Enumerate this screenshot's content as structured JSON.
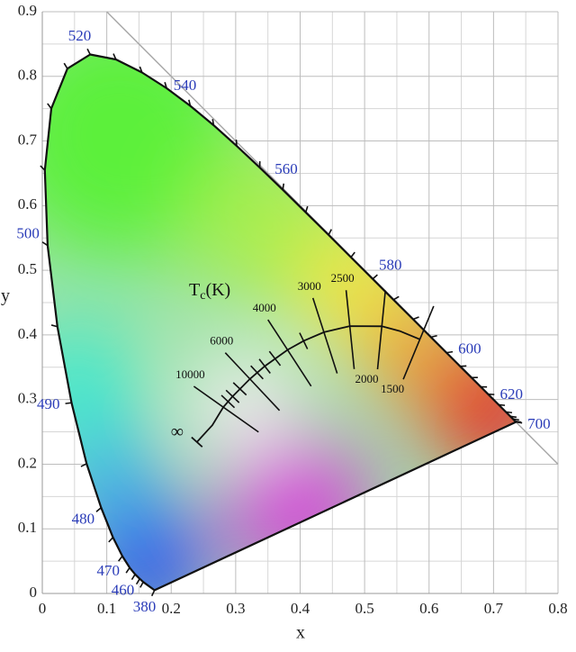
{
  "chart_data": {
    "type": "chromaticity",
    "x_label": "x",
    "y_label": "y",
    "xlim": [
      0,
      0.8
    ],
    "ylim": [
      0,
      0.9
    ],
    "xticks": [
      0.0,
      0.1,
      0.2,
      0.3,
      0.4,
      0.5,
      0.6,
      0.7,
      0.8
    ],
    "yticks": [
      0.0,
      0.1,
      0.2,
      0.3,
      0.4,
      0.5,
      0.6,
      0.7,
      0.8,
      0.9
    ],
    "xminor": [
      0.05,
      0.15,
      0.25,
      0.35,
      0.45,
      0.55,
      0.65,
      0.75
    ],
    "yminor": [
      0.05,
      0.15,
      0.25,
      0.35,
      0.45,
      0.55,
      0.65,
      0.75,
      0.85
    ],
    "grid": true,
    "spectral_locus": {
      "wavelengths": [
        380,
        450,
        455,
        460,
        465,
        470,
        475,
        480,
        485,
        490,
        495,
        500,
        505,
        510,
        515,
        520,
        525,
        530,
        535,
        540,
        545,
        550,
        555,
        560,
        565,
        570,
        575,
        580,
        585,
        590,
        595,
        600,
        605,
        610,
        615,
        620,
        630,
        640,
        650,
        660,
        680,
        700
      ],
      "x": [
        0.1741,
        0.1566,
        0.151,
        0.144,
        0.1355,
        0.1241,
        0.1096,
        0.0913,
        0.0687,
        0.0454,
        0.0235,
        0.0082,
        0.0039,
        0.0139,
        0.0389,
        0.0743,
        0.1142,
        0.1547,
        0.1929,
        0.2296,
        0.2658,
        0.3016,
        0.3373,
        0.3731,
        0.4087,
        0.4441,
        0.4788,
        0.5125,
        0.5448,
        0.5752,
        0.6029,
        0.627,
        0.6482,
        0.6658,
        0.6801,
        0.6915,
        0.7079,
        0.719,
        0.726,
        0.73,
        0.7334,
        0.7347
      ],
      "y": [
        0.005,
        0.0177,
        0.0227,
        0.0297,
        0.0399,
        0.0578,
        0.0868,
        0.1327,
        0.2007,
        0.295,
        0.4127,
        0.5384,
        0.6548,
        0.7502,
        0.812,
        0.8338,
        0.8262,
        0.8059,
        0.7816,
        0.7543,
        0.7243,
        0.6923,
        0.6589,
        0.6245,
        0.5896,
        0.5547,
        0.5202,
        0.4866,
        0.4544,
        0.4242,
        0.3965,
        0.3725,
        0.3514,
        0.334,
        0.3197,
        0.3083,
        0.292,
        0.2809,
        0.274,
        0.27,
        0.2666,
        0.2653
      ]
    },
    "wavelength_labels": [
      380,
      460,
      470,
      480,
      490,
      500,
      520,
      540,
      560,
      580,
      600,
      620,
      700
    ],
    "planck_label": {
      "symbol": "T",
      "subscript": "c",
      "unit": "(K)"
    },
    "infinity_label": "∞",
    "planckian_locus": {
      "x": [
        0.2399,
        0.2565,
        0.2637,
        0.2807,
        0.2952,
        0.3221,
        0.3451,
        0.3805,
        0.4053,
        0.4369,
        0.477,
        0.5267,
        0.5546,
        0.5857
      ],
      "y": [
        0.2342,
        0.2525,
        0.2603,
        0.2883,
        0.3048,
        0.3318,
        0.3516,
        0.3768,
        0.3907,
        0.4041,
        0.4137,
        0.4133,
        0.406,
        0.3931
      ]
    },
    "isotherms": {
      "temperatures": [
        10000,
        6000,
        4000,
        3000,
        2500,
        2000,
        1500
      ],
      "x": [
        0.2807,
        0.3221,
        0.3805,
        0.4369,
        0.477,
        0.5267,
        0.5857
      ],
      "y": [
        0.2883,
        0.3318,
        0.3768,
        0.4041,
        0.4137,
        0.4133,
        0.3931
      ]
    },
    "minor_isotherms": {
      "x": [
        0.288,
        0.2952,
        0.3064,
        0.333,
        0.3451,
        0.3608,
        0.4053
      ],
      "y": [
        0.297,
        0.3048,
        0.3166,
        0.342,
        0.3516,
        0.3636,
        0.3907
      ]
    }
  }
}
